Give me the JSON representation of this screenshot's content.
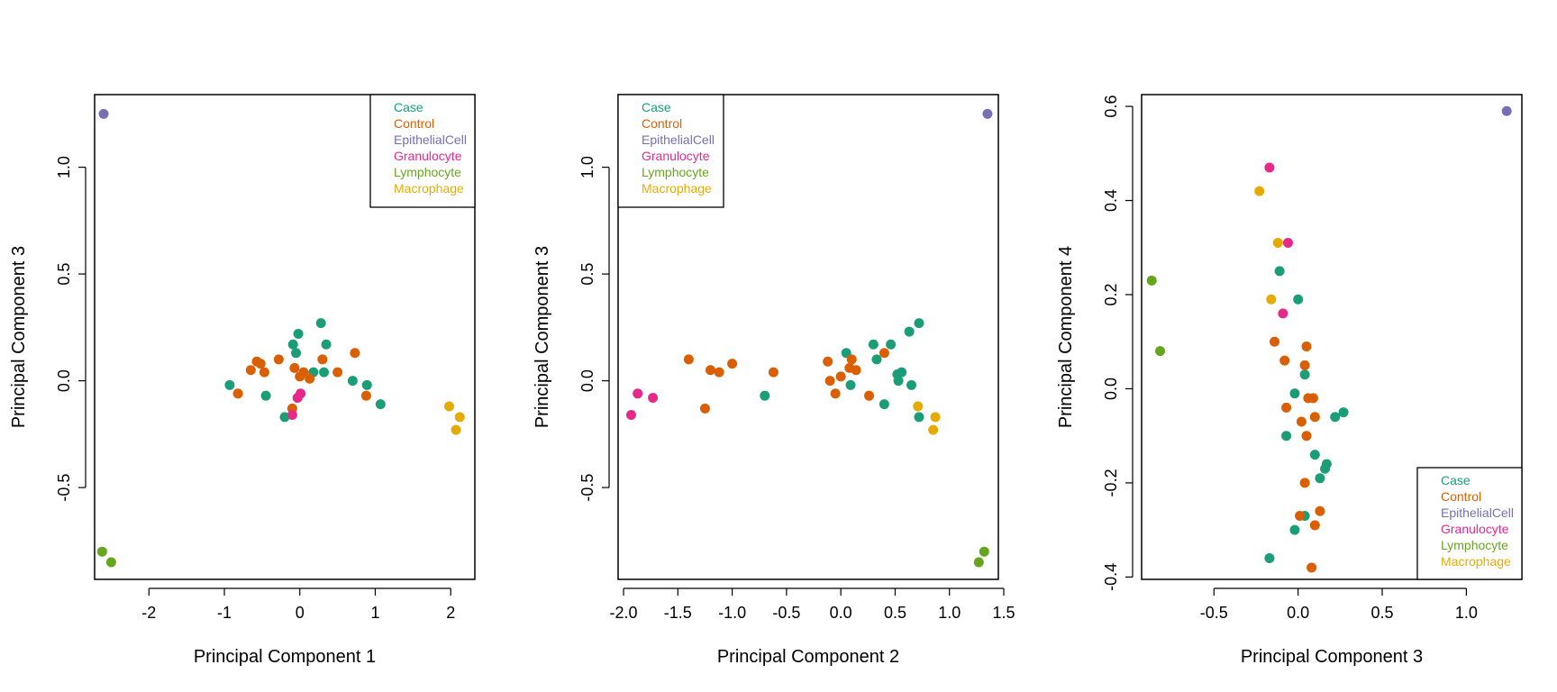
{
  "colors": {
    "Case": "#1b9e77",
    "Control": "#d95f02",
    "EpithelialCell": "#7570b3",
    "Granulocyte": "#e7298a",
    "Lymphocyte": "#66a61e",
    "Macrophage": "#e6ab02"
  },
  "chart_data": [
    {
      "type": "scatter",
      "xlabel": "Principal Component 1",
      "ylabel": "Principal Component 3",
      "xlim": [
        -2.72,
        2.32
      ],
      "ylim": [
        -0.93,
        1.34
      ],
      "xticks": [
        -2,
        -1,
        0,
        1,
        2
      ],
      "yticks": [
        -0.5,
        0.0,
        0.5,
        1.0
      ],
      "xtick_labels": [
        "-2",
        "-1",
        "0",
        "1",
        "2"
      ],
      "ytick_labels": [
        "-0.5",
        "0.0",
        "0.5",
        "1.0"
      ],
      "legend_position": "top-right",
      "legend": [
        "Case",
        "Control",
        "EpithelialCell",
        "Granulocyte",
        "Lymphocyte",
        "Macrophage"
      ],
      "series": [
        {
          "name": "Case",
          "points": [
            [
              -0.93,
              -0.02
            ],
            [
              -0.45,
              -0.07
            ],
            [
              -0.09,
              0.17
            ],
            [
              -0.05,
              0.13
            ],
            [
              -0.02,
              0.22
            ],
            [
              0.18,
              0.04
            ],
            [
              0.28,
              0.27
            ],
            [
              0.32,
              0.04
            ],
            [
              0.35,
              0.17
            ],
            [
              0.7,
              0.0
            ],
            [
              0.89,
              -0.02
            ],
            [
              1.07,
              -0.11
            ],
            [
              -0.2,
              -0.17
            ]
          ]
        },
        {
          "name": "Control",
          "points": [
            [
              -0.82,
              -0.06
            ],
            [
              -0.65,
              0.05
            ],
            [
              -0.57,
              0.09
            ],
            [
              -0.52,
              0.08
            ],
            [
              -0.47,
              0.04
            ],
            [
              -0.28,
              0.1
            ],
            [
              -0.07,
              0.06
            ],
            [
              0.0,
              0.02
            ],
            [
              0.05,
              0.04
            ],
            [
              0.13,
              0.01
            ],
            [
              0.3,
              0.1
            ],
            [
              0.5,
              0.04
            ],
            [
              0.73,
              0.13
            ],
            [
              0.88,
              -0.07
            ],
            [
              -0.1,
              -0.13
            ]
          ]
        },
        {
          "name": "EpithelialCell",
          "points": [
            [
              -2.6,
              1.25
            ]
          ]
        },
        {
          "name": "Granulocyte",
          "points": [
            [
              -0.1,
              -0.16
            ],
            [
              -0.03,
              -0.08
            ],
            [
              0.01,
              -0.06
            ]
          ]
        },
        {
          "name": "Lymphocyte",
          "points": [
            [
              -2.62,
              -0.8
            ],
            [
              -2.5,
              -0.85
            ]
          ]
        },
        {
          "name": "Macrophage",
          "points": [
            [
              1.98,
              -0.12
            ],
            [
              2.07,
              -0.23
            ],
            [
              2.12,
              -0.17
            ]
          ]
        }
      ]
    },
    {
      "type": "scatter",
      "xlabel": "Principal Component 2",
      "ylabel": "Principal Component 3",
      "xlim": [
        -2.05,
        1.45
      ],
      "ylim": [
        -0.93,
        1.34
      ],
      "xticks": [
        -2.0,
        -1.5,
        -1.0,
        -0.5,
        0.0,
        0.5,
        1.0,
        1.5
      ],
      "yticks": [
        -0.5,
        0.0,
        0.5,
        1.0
      ],
      "xtick_labels": [
        "-2.0",
        "-1.5",
        "-1.0",
        "-0.5",
        "0.0",
        "0.5",
        "1.0",
        "1.5"
      ],
      "ytick_labels": [
        "-0.5",
        "0.0",
        "0.5",
        "1.0"
      ],
      "legend_position": "top-left",
      "legend": [
        "Case",
        "Control",
        "EpithelialCell",
        "Granulocyte",
        "Lymphocyte",
        "Macrophage"
      ],
      "series": [
        {
          "name": "Case",
          "points": [
            [
              -0.7,
              -0.07
            ],
            [
              0.05,
              0.13
            ],
            [
              0.09,
              -0.02
            ],
            [
              0.3,
              0.17
            ],
            [
              0.33,
              0.1
            ],
            [
              0.4,
              -0.11
            ],
            [
              0.46,
              0.17
            ],
            [
              0.52,
              0.03
            ],
            [
              0.53,
              0.0
            ],
            [
              0.56,
              0.04
            ],
            [
              0.63,
              0.23
            ],
            [
              0.65,
              -0.02
            ],
            [
              0.72,
              0.27
            ],
            [
              0.72,
              -0.17
            ]
          ]
        },
        {
          "name": "Control",
          "points": [
            [
              -1.4,
              0.1
            ],
            [
              -1.25,
              -0.13
            ],
            [
              -1.2,
              0.05
            ],
            [
              -1.12,
              0.04
            ],
            [
              -1.0,
              0.08
            ],
            [
              -0.62,
              0.04
            ],
            [
              -0.12,
              0.09
            ],
            [
              -0.1,
              0.0
            ],
            [
              -0.05,
              -0.06
            ],
            [
              0.0,
              0.02
            ],
            [
              0.08,
              0.06
            ],
            [
              0.1,
              0.1
            ],
            [
              0.14,
              0.05
            ],
            [
              0.26,
              -0.07
            ],
            [
              0.4,
              0.13
            ]
          ]
        },
        {
          "name": "EpithelialCell",
          "points": [
            [
              1.35,
              1.25
            ]
          ]
        },
        {
          "name": "Granulocyte",
          "points": [
            [
              -1.93,
              -0.16
            ],
            [
              -1.87,
              -0.06
            ],
            [
              -1.73,
              -0.08
            ]
          ]
        },
        {
          "name": "Lymphocyte",
          "points": [
            [
              1.27,
              -0.85
            ],
            [
              1.32,
              -0.8
            ]
          ]
        },
        {
          "name": "Macrophage",
          "points": [
            [
              0.71,
              -0.12
            ],
            [
              0.85,
              -0.23
            ],
            [
              0.87,
              -0.17
            ]
          ]
        }
      ]
    },
    {
      "type": "scatter",
      "xlabel": "Principal Component 3",
      "ylabel": "Principal Component 4",
      "xlim": [
        -0.93,
        1.33
      ],
      "ylim": [
        -0.405,
        0.625
      ],
      "xticks": [
        -0.5,
        0.0,
        0.5,
        1.0
      ],
      "yticks": [
        -0.4,
        -0.2,
        0.0,
        0.2,
        0.4,
        0.6
      ],
      "xtick_labels": [
        "-0.5",
        "0.0",
        "0.5",
        "1.0"
      ],
      "ytick_labels": [
        "-0.4",
        "-0.2",
        "0.0",
        "0.2",
        "0.4",
        "0.6"
      ],
      "legend_position": "bottom-right",
      "legend": [
        "Case",
        "Control",
        "EpithelialCell",
        "Granulocyte",
        "Lymphocyte",
        "Macrophage"
      ],
      "series": [
        {
          "name": "Case",
          "points": [
            [
              -0.11,
              0.25
            ],
            [
              0.0,
              0.19
            ],
            [
              -0.02,
              -0.01
            ],
            [
              0.04,
              0.03
            ],
            [
              -0.07,
              -0.1
            ],
            [
              0.1,
              -0.14
            ],
            [
              0.13,
              -0.19
            ],
            [
              0.16,
              -0.17
            ],
            [
              0.17,
              -0.16
            ],
            [
              0.22,
              -0.06
            ],
            [
              0.27,
              -0.05
            ],
            [
              0.04,
              -0.27
            ],
            [
              -0.02,
              -0.3
            ],
            [
              -0.17,
              -0.36
            ]
          ]
        },
        {
          "name": "Control",
          "points": [
            [
              -0.14,
              0.1
            ],
            [
              -0.08,
              0.06
            ],
            [
              -0.07,
              -0.04
            ],
            [
              0.04,
              0.05
            ],
            [
              0.05,
              0.09
            ],
            [
              0.06,
              -0.02
            ],
            [
              0.09,
              -0.02
            ],
            [
              0.1,
              -0.06
            ],
            [
              0.02,
              -0.07
            ],
            [
              0.05,
              -0.1
            ],
            [
              0.04,
              -0.2
            ],
            [
              0.01,
              -0.27
            ],
            [
              0.13,
              -0.26
            ],
            [
              0.1,
              -0.29
            ],
            [
              0.08,
              -0.38
            ]
          ]
        },
        {
          "name": "EpithelialCell",
          "points": [
            [
              1.24,
              0.59
            ]
          ]
        },
        {
          "name": "Granulocyte",
          "points": [
            [
              -0.17,
              0.47
            ],
            [
              -0.06,
              0.31
            ],
            [
              -0.09,
              0.16
            ]
          ]
        },
        {
          "name": "Lymphocyte",
          "points": [
            [
              -0.87,
              0.23
            ],
            [
              -0.82,
              0.08
            ]
          ]
        },
        {
          "name": "Macrophage",
          "points": [
            [
              -0.23,
              0.42
            ],
            [
              -0.12,
              0.31
            ],
            [
              -0.16,
              0.19
            ]
          ]
        }
      ]
    }
  ]
}
